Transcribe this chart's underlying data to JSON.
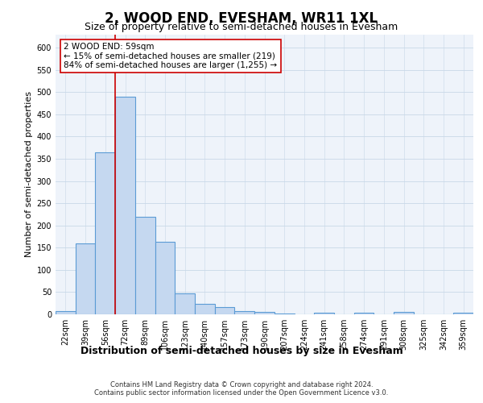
{
  "title": "2, WOOD END, EVESHAM, WR11 1XL",
  "subtitle": "Size of property relative to semi-detached houses in Evesham",
  "xlabel": "Distribution of semi-detached houses by size in Evesham",
  "ylabel": "Number of semi-detached properties",
  "categories": [
    "22sqm",
    "39sqm",
    "56sqm",
    "72sqm",
    "89sqm",
    "106sqm",
    "123sqm",
    "140sqm",
    "157sqm",
    "173sqm",
    "190sqm",
    "207sqm",
    "224sqm",
    "241sqm",
    "258sqm",
    "274sqm",
    "291sqm",
    "308sqm",
    "325sqm",
    "342sqm",
    "359sqm"
  ],
  "values": [
    8,
    160,
    365,
    490,
    220,
    163,
    48,
    23,
    16,
    7,
    6,
    2,
    0,
    4,
    0,
    3,
    0,
    6,
    0,
    0,
    3
  ],
  "bar_color": "#c5d8f0",
  "bar_edge_color": "#5b9bd5",
  "bar_linewidth": 0.8,
  "vline_color": "#cc0000",
  "vline_linewidth": 1.2,
  "annotation_text": "2 WOOD END: 59sqm\n← 15% of semi-detached houses are smaller (219)\n84% of semi-detached houses are larger (1,255) →",
  "annotation_box_facecolor": "#ffffff",
  "annotation_box_edgecolor": "#cc0000",
  "ylim": [
    0,
    630
  ],
  "yticks": [
    0,
    50,
    100,
    150,
    200,
    250,
    300,
    350,
    400,
    450,
    500,
    550,
    600
  ],
  "grid_color": "#c8d8e8",
  "background_color": "#eef3fa",
  "footer_line1": "Contains HM Land Registry data © Crown copyright and database right 2024.",
  "footer_line2": "Contains public sector information licensed under the Open Government Licence v3.0.",
  "title_fontsize": 12,
  "subtitle_fontsize": 9,
  "xlabel_fontsize": 9,
  "ylabel_fontsize": 8,
  "tick_fontsize": 7,
  "annotation_fontsize": 7.5,
  "footer_fontsize": 6
}
